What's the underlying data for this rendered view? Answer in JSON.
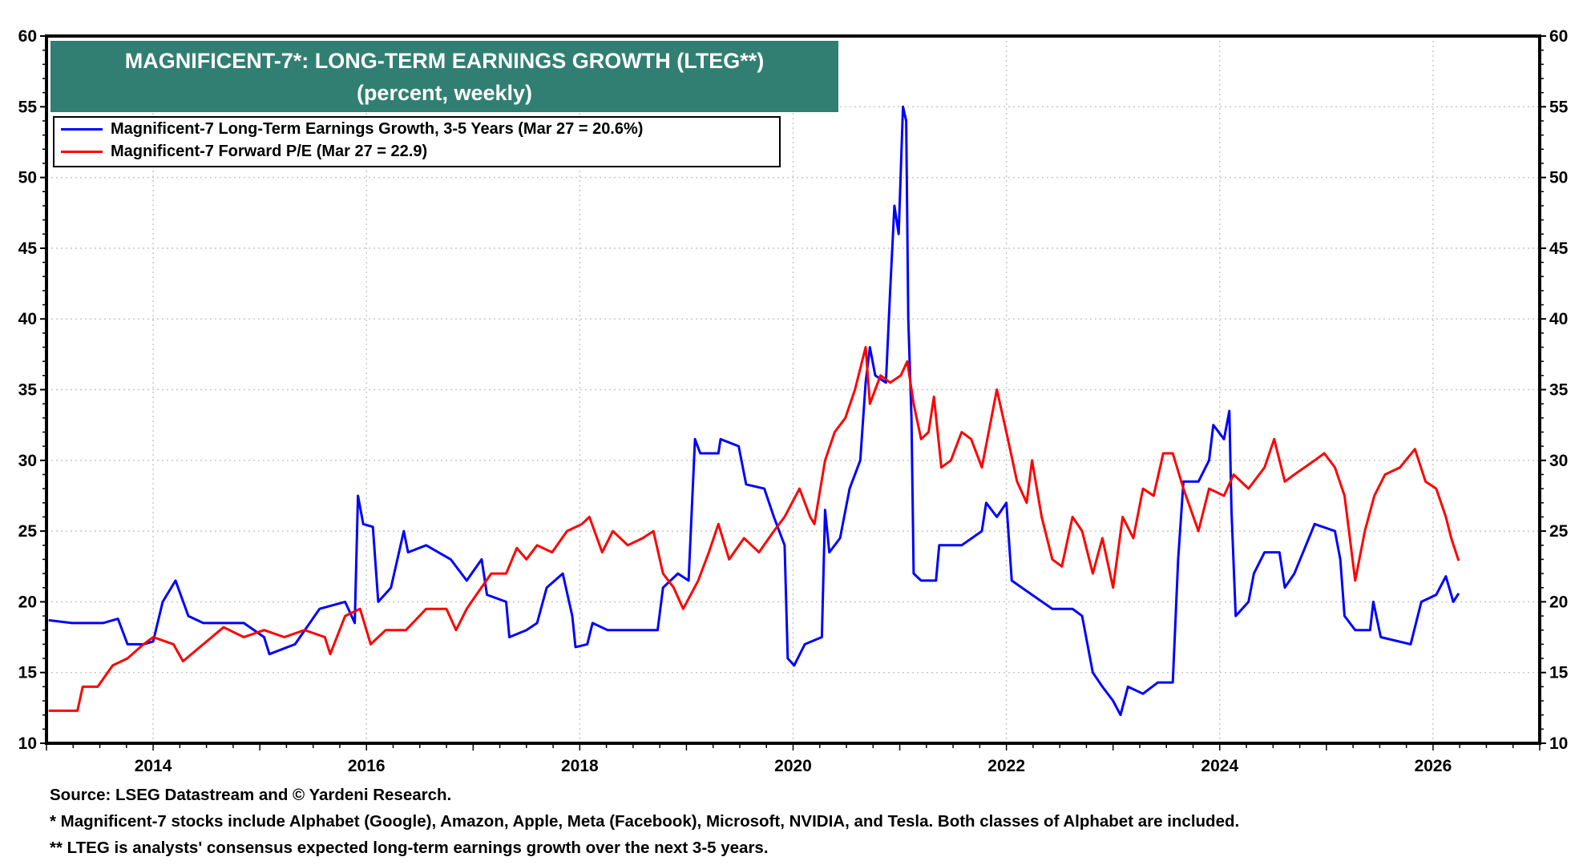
{
  "chart_data": {
    "type": "line",
    "title": "MAGNIFICENT-7*: LONG-TERM EARNINGS GROWTH (LTEG**)",
    "subtitle": "(percent, weekly)",
    "xlabel": "",
    "ylabel": "",
    "xlim": [
      2013,
      2027
    ],
    "ylim": [
      10,
      60
    ],
    "x_ticks": [
      "2014",
      "2016",
      "2018",
      "2020",
      "2022",
      "2024",
      "2026"
    ],
    "y_ticks": [
      10,
      15,
      20,
      25,
      30,
      35,
      40,
      45,
      50,
      55,
      60
    ],
    "grid": true,
    "legend_placement": "top-left",
    "series": [
      {
        "name": "Magnificent-7 Long-Term Earnings Growth, 3-5 Years (Mar 27 = 20.6%)",
        "color": "#0000ff",
        "points": [
          [
            2013.02,
            18.7
          ],
          [
            2013.24,
            18.5
          ],
          [
            2013.53,
            18.5
          ],
          [
            2013.67,
            18.8
          ],
          [
            2013.76,
            17
          ],
          [
            2013.91,
            17
          ],
          [
            2014.0,
            17.2
          ],
          [
            2014.09,
            20
          ],
          [
            2014.21,
            21.5
          ],
          [
            2014.33,
            19
          ],
          [
            2014.47,
            18.5
          ],
          [
            2014.85,
            18.5
          ],
          [
            2015.04,
            17.5
          ],
          [
            2015.09,
            16.3
          ],
          [
            2015.33,
            17
          ],
          [
            2015.56,
            19.5
          ],
          [
            2015.8,
            20
          ],
          [
            2015.89,
            18.5
          ],
          [
            2015.92,
            27.5
          ],
          [
            2015.97,
            25.5
          ],
          [
            2016.06,
            25.3
          ],
          [
            2016.11,
            20
          ],
          [
            2016.23,
            21
          ],
          [
            2016.35,
            25
          ],
          [
            2016.39,
            23.5
          ],
          [
            2016.56,
            24
          ],
          [
            2016.79,
            23
          ],
          [
            2016.94,
            21.5
          ],
          [
            2017.08,
            23
          ],
          [
            2017.13,
            20.5
          ],
          [
            2017.31,
            20
          ],
          [
            2017.34,
            17.5
          ],
          [
            2017.5,
            18
          ],
          [
            2017.6,
            18.5
          ],
          [
            2017.69,
            21
          ],
          [
            2017.84,
            22
          ],
          [
            2017.93,
            19
          ],
          [
            2017.96,
            16.8
          ],
          [
            2018.07,
            17
          ],
          [
            2018.12,
            18.5
          ],
          [
            2018.26,
            18
          ],
          [
            2018.55,
            18
          ],
          [
            2018.73,
            18
          ],
          [
            2018.78,
            21
          ],
          [
            2018.92,
            22
          ],
          [
            2019.02,
            21.5
          ],
          [
            2019.08,
            31.5
          ],
          [
            2019.13,
            30.5
          ],
          [
            2019.3,
            30.5
          ],
          [
            2019.32,
            31.5
          ],
          [
            2019.49,
            31
          ],
          [
            2019.56,
            28.3
          ],
          [
            2019.73,
            28
          ],
          [
            2019.82,
            26
          ],
          [
            2019.92,
            24
          ],
          [
            2019.95,
            16
          ],
          [
            2020.01,
            15.5
          ],
          [
            2020.11,
            17
          ],
          [
            2020.27,
            17.5
          ],
          [
            2020.3,
            26.5
          ],
          [
            2020.34,
            23.5
          ],
          [
            2020.44,
            24.5
          ],
          [
            2020.53,
            28
          ],
          [
            2020.63,
            30
          ],
          [
            2020.68,
            35.5
          ],
          [
            2020.72,
            38
          ],
          [
            2020.77,
            36
          ],
          [
            2020.87,
            35.5
          ],
          [
            2020.91,
            42
          ],
          [
            2020.95,
            48
          ],
          [
            2020.99,
            46
          ],
          [
            2021.03,
            55
          ],
          [
            2021.06,
            54
          ],
          [
            2021.08,
            40
          ],
          [
            2021.11,
            33
          ],
          [
            2021.13,
            22
          ],
          [
            2021.2,
            21.5
          ],
          [
            2021.34,
            21.5
          ],
          [
            2021.37,
            24
          ],
          [
            2021.58,
            24
          ],
          [
            2021.77,
            25
          ],
          [
            2021.81,
            27
          ],
          [
            2021.91,
            26
          ],
          [
            2022.0,
            27
          ],
          [
            2022.05,
            21.5
          ],
          [
            2022.24,
            20.5
          ],
          [
            2022.43,
            19.5
          ],
          [
            2022.62,
            19.5
          ],
          [
            2022.71,
            19
          ],
          [
            2022.81,
            15
          ],
          [
            2022.9,
            14
          ],
          [
            2023.0,
            13
          ],
          [
            2023.07,
            12
          ],
          [
            2023.14,
            14
          ],
          [
            2023.28,
            13.5
          ],
          [
            2023.42,
            14.3
          ],
          [
            2023.56,
            14.3
          ],
          [
            2023.61,
            23
          ],
          [
            2023.66,
            28.5
          ],
          [
            2023.8,
            28.5
          ],
          [
            2023.9,
            30
          ],
          [
            2023.94,
            32.5
          ],
          [
            2024.04,
            31.5
          ],
          [
            2024.09,
            33.5
          ],
          [
            2024.11,
            26.5
          ],
          [
            2024.15,
            19
          ],
          [
            2024.27,
            20
          ],
          [
            2024.32,
            22
          ],
          [
            2024.42,
            23.5
          ],
          [
            2024.56,
            23.5
          ],
          [
            2024.61,
            21
          ],
          [
            2024.7,
            22
          ],
          [
            2024.89,
            25.5
          ],
          [
            2025.08,
            25
          ],
          [
            2025.13,
            23
          ],
          [
            2025.17,
            19
          ],
          [
            2025.27,
            18
          ],
          [
            2025.41,
            18
          ],
          [
            2025.44,
            20
          ],
          [
            2025.51,
            17.5
          ],
          [
            2025.79,
            17
          ],
          [
            2025.89,
            20
          ],
          [
            2026.03,
            20.5
          ],
          [
            2026.12,
            21.8
          ],
          [
            2026.19,
            20
          ],
          [
            2026.24,
            20.6
          ]
        ]
      },
      {
        "name": "Magnificent-7 Forward P/E (Mar 27 = 22.9)",
        "color": "#ff0000",
        "points": [
          [
            2013.02,
            12.3
          ],
          [
            2013.29,
            12.3
          ],
          [
            2013.34,
            14
          ],
          [
            2013.48,
            14
          ],
          [
            2013.62,
            15.5
          ],
          [
            2013.76,
            16
          ],
          [
            2013.91,
            17
          ],
          [
            2014.0,
            17.5
          ],
          [
            2014.19,
            17
          ],
          [
            2014.28,
            15.8
          ],
          [
            2014.47,
            17
          ],
          [
            2014.66,
            18.2
          ],
          [
            2014.85,
            17.5
          ],
          [
            2015.04,
            18
          ],
          [
            2015.23,
            17.5
          ],
          [
            2015.42,
            18
          ],
          [
            2015.61,
            17.5
          ],
          [
            2015.66,
            16.3
          ],
          [
            2015.8,
            19
          ],
          [
            2015.94,
            19.5
          ],
          [
            2016.04,
            17
          ],
          [
            2016.18,
            18
          ],
          [
            2016.37,
            18
          ],
          [
            2016.56,
            19.5
          ],
          [
            2016.75,
            19.5
          ],
          [
            2016.84,
            18
          ],
          [
            2016.94,
            19.5
          ],
          [
            2017.03,
            20.5
          ],
          [
            2017.17,
            22
          ],
          [
            2017.31,
            22
          ],
          [
            2017.41,
            23.8
          ],
          [
            2017.5,
            23
          ],
          [
            2017.6,
            24
          ],
          [
            2017.74,
            23.5
          ],
          [
            2017.88,
            25
          ],
          [
            2018.02,
            25.5
          ],
          [
            2018.09,
            26
          ],
          [
            2018.21,
            23.5
          ],
          [
            2018.31,
            25
          ],
          [
            2018.45,
            24
          ],
          [
            2018.59,
            24.5
          ],
          [
            2018.69,
            25
          ],
          [
            2018.78,
            22
          ],
          [
            2018.88,
            21
          ],
          [
            2018.97,
            19.5
          ],
          [
            2019.11,
            21.5
          ],
          [
            2019.21,
            23.5
          ],
          [
            2019.3,
            25.5
          ],
          [
            2019.4,
            23
          ],
          [
            2019.54,
            24.5
          ],
          [
            2019.68,
            23.5
          ],
          [
            2019.82,
            25
          ],
          [
            2019.92,
            26
          ],
          [
            2020.06,
            28
          ],
          [
            2020.16,
            26
          ],
          [
            2020.2,
            25.5
          ],
          [
            2020.3,
            30
          ],
          [
            2020.39,
            32
          ],
          [
            2020.49,
            33
          ],
          [
            2020.58,
            35
          ],
          [
            2020.68,
            38
          ],
          [
            2020.72,
            34
          ],
          [
            2020.82,
            36
          ],
          [
            2020.91,
            35.5
          ],
          [
            2021.01,
            36
          ],
          [
            2021.07,
            37
          ],
          [
            2021.13,
            34
          ],
          [
            2021.2,
            31.5
          ],
          [
            2021.27,
            32
          ],
          [
            2021.32,
            34.5
          ],
          [
            2021.39,
            29.5
          ],
          [
            2021.48,
            30
          ],
          [
            2021.58,
            32
          ],
          [
            2021.67,
            31.5
          ],
          [
            2021.77,
            29.5
          ],
          [
            2021.91,
            35
          ],
          [
            2022.0,
            32
          ],
          [
            2022.1,
            28.5
          ],
          [
            2022.19,
            27
          ],
          [
            2022.24,
            30
          ],
          [
            2022.33,
            26
          ],
          [
            2022.43,
            23
          ],
          [
            2022.52,
            22.5
          ],
          [
            2022.62,
            26
          ],
          [
            2022.71,
            25
          ],
          [
            2022.81,
            22
          ],
          [
            2022.9,
            24.5
          ],
          [
            2023.0,
            21
          ],
          [
            2023.09,
            26
          ],
          [
            2023.19,
            24.5
          ],
          [
            2023.28,
            28
          ],
          [
            2023.38,
            27.5
          ],
          [
            2023.47,
            30.5
          ],
          [
            2023.56,
            30.5
          ],
          [
            2023.66,
            28
          ],
          [
            2023.8,
            25
          ],
          [
            2023.9,
            28
          ],
          [
            2024.04,
            27.5
          ],
          [
            2024.13,
            29
          ],
          [
            2024.27,
            28
          ],
          [
            2024.42,
            29.5
          ],
          [
            2024.51,
            31.5
          ],
          [
            2024.61,
            28.5
          ],
          [
            2024.7,
            29
          ],
          [
            2024.89,
            30
          ],
          [
            2024.98,
            30.5
          ],
          [
            2025.08,
            29.5
          ],
          [
            2025.17,
            27.5
          ],
          [
            2025.27,
            21.5
          ],
          [
            2025.36,
            25
          ],
          [
            2025.45,
            27.5
          ],
          [
            2025.55,
            29
          ],
          [
            2025.69,
            29.5
          ],
          [
            2025.83,
            30.8
          ],
          [
            2025.93,
            28.5
          ],
          [
            2026.03,
            28
          ],
          [
            2026.12,
            26
          ],
          [
            2026.17,
            24.5
          ],
          [
            2026.24,
            22.9
          ]
        ]
      }
    ]
  },
  "colors": {
    "title_bg": "#317f72",
    "title_text": "#ffffff"
  },
  "footnotes": {
    "source": "Source: LSEG Datastream and © Yardeni Research.",
    "note1": "* Magnificent-7 stocks include Alphabet (Google), Amazon, Apple, Meta (Facebook), Microsoft, NVIDIA, and Tesla. Both classes of Alphabet are included.",
    "note2": "** LTEG is analysts' consensus expected long-term earnings growth over the next 3-5 years."
  }
}
